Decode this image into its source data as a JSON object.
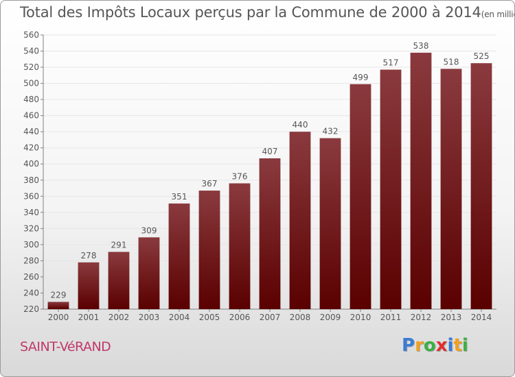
{
  "title": "Total des Impôts Locaux perçus par la Commune de 2000 à 2014",
  "title_unit": "(en milliers d'€)",
  "commune": "SAINT-VéRAND",
  "logo": {
    "letters": [
      {
        "ch": "P",
        "color": "#3a7bd5"
      },
      {
        "ch": "r",
        "color": "#f0a020"
      },
      {
        "ch": "o",
        "color": "#3cb043"
      },
      {
        "ch": "x",
        "color": "#e03030"
      },
      {
        "ch": "i",
        "color": "#3a7bd5"
      },
      {
        "ch": "t",
        "color": "#f0a020"
      },
      {
        "ch": "i",
        "color": "#3cb043"
      }
    ]
  },
  "colors": {
    "bar_top": "#8a3a3e",
    "bar_bottom": "#5a0000",
    "grid": "#e6e6e6",
    "axis": "#808080",
    "text": "#555555"
  },
  "chart_data": {
    "type": "bar",
    "categories": [
      "2000",
      "2001",
      "2002",
      "2003",
      "2004",
      "2005",
      "2006",
      "2007",
      "2008",
      "2009",
      "2010",
      "2011",
      "2012",
      "2013",
      "2014"
    ],
    "values": [
      229,
      278,
      291,
      309,
      351,
      367,
      376,
      407,
      440,
      432,
      499,
      517,
      538,
      518,
      525
    ],
    "data_labels": [
      "229",
      "278",
      "291",
      "309",
      "351",
      "367",
      "376",
      "407",
      "440",
      "432",
      "499",
      "517",
      "538",
      "518",
      "525"
    ],
    "yticks": [
      "220",
      "240",
      "260",
      "280",
      "300",
      "320",
      "340",
      "360",
      "380",
      "400",
      "420",
      "440",
      "460",
      "480",
      "500",
      "520",
      "540",
      "560"
    ],
    "ylim": [
      220,
      560
    ],
    "grid": true
  }
}
